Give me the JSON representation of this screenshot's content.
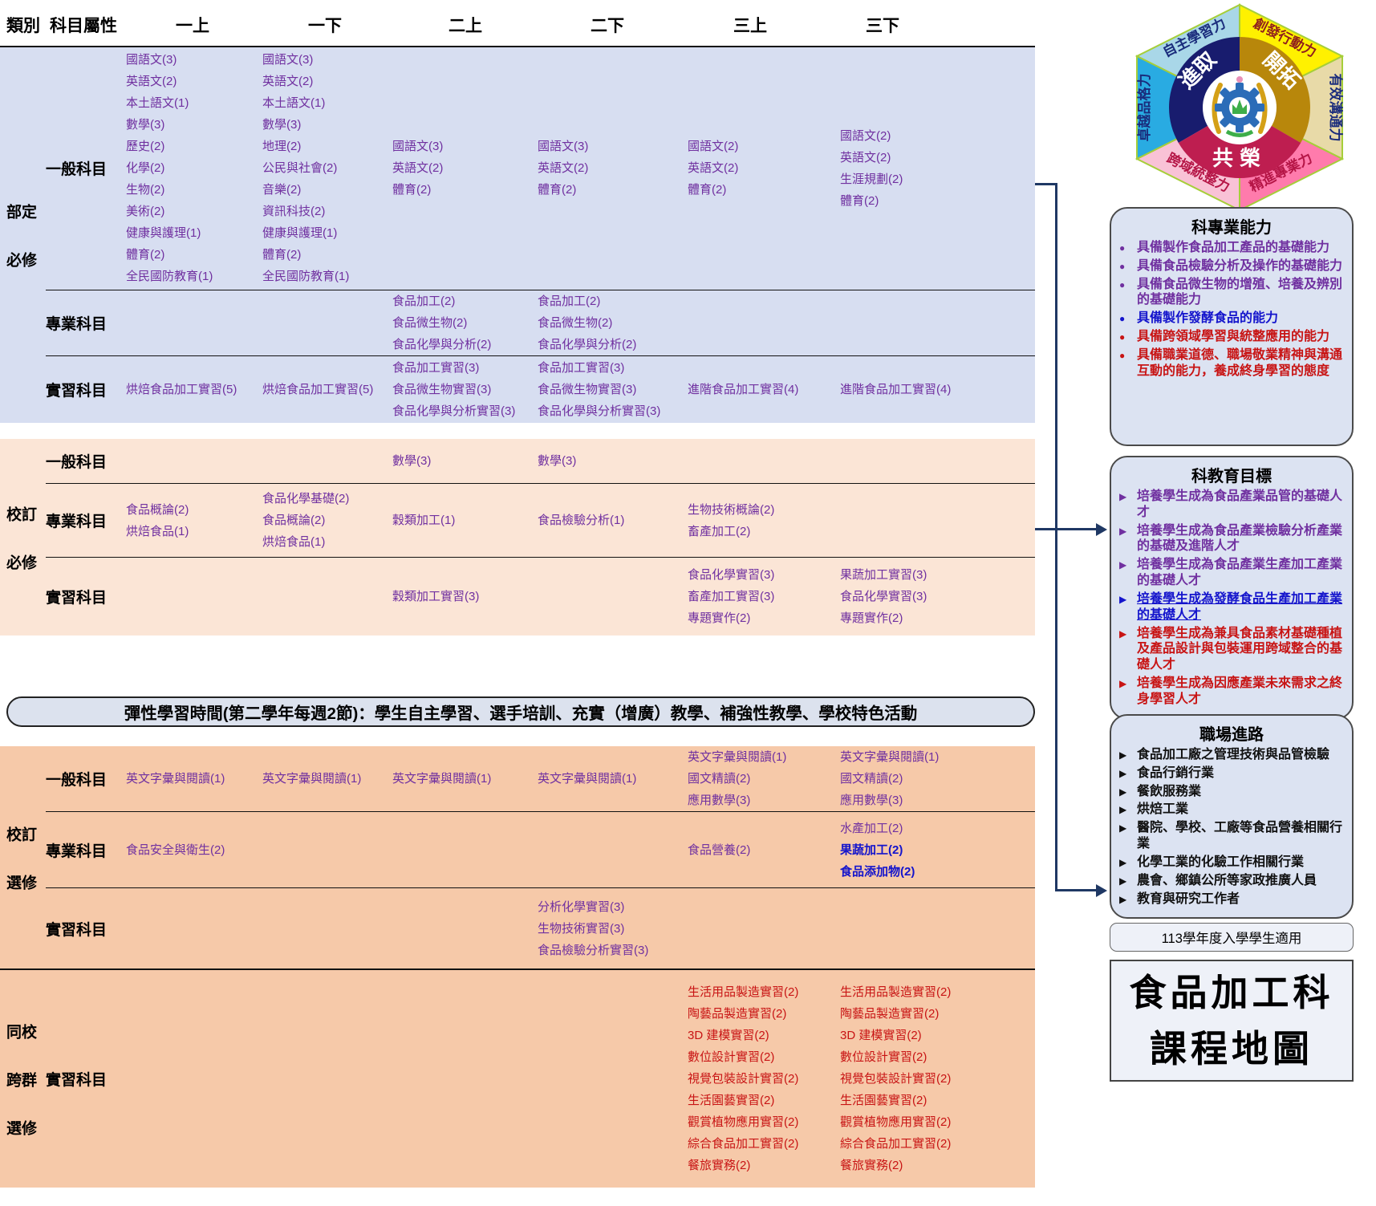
{
  "palette": {
    "purple": "#7030A0",
    "blue": "#1414CC",
    "red": "#C81414",
    "ink": "#111111",
    "navy": "#1F3864",
    "secblue": "#D7DEF1",
    "secpeach": "#FBE5D6",
    "secorange": "#F6C9A9",
    "bannerbg": "#DCE2EE",
    "boxbg": "#DCE3F2",
    "panelbg": "#EEF1F8"
  },
  "table": {
    "header": {
      "category_label": "類別",
      "attribute_label": "科目屬性",
      "semesters": [
        "一上",
        "一下",
        "二上",
        "二下",
        "三上",
        "三下"
      ]
    },
    "sections": [
      {
        "category": [
          "部定",
          "必修"
        ],
        "rows": [
          {
            "label": "一般科目",
            "cells": [
              [
                "國語文(3)",
                "英語文(2)",
                "本土語文(1)",
                "數學(3)",
                "歷史(2)",
                "化學(2)",
                "生物(2)",
                "美術(2)",
                "健康與護理(1)",
                "體育(2)",
                "全民國防教育(1)"
              ],
              [
                "國語文(3)",
                "英語文(2)",
                "本土語文(1)",
                "數學(3)",
                "地理(2)",
                "公民與社會(2)",
                "音樂(2)",
                "資訊科技(2)",
                "健康與護理(1)",
                "體育(2)",
                "全民國防教育(1)"
              ],
              [
                "國語文(3)",
                "英語文(2)",
                "體育(2)"
              ],
              [
                "國語文(3)",
                "英語文(2)",
                "體育(2)"
              ],
              [
                "國語文(2)",
                "英語文(2)",
                "體育(2)"
              ],
              [
                "國語文(2)",
                "英語文(2)",
                "生涯規劃(2)",
                "體育(2)"
              ]
            ]
          },
          {
            "label": "專業科目",
            "cells": [
              [],
              [],
              [
                "食品加工(2)",
                "食品微生物(2)",
                "食品化學與分析(2)"
              ],
              [
                "食品加工(2)",
                "食品微生物(2)",
                "食品化學與分析(2)"
              ],
              [],
              []
            ]
          },
          {
            "label": "實習科目",
            "cells": [
              [
                "烘焙食品加工實習(5)"
              ],
              [
                "烘焙食品加工實習(5)"
              ],
              [
                "食品加工實習(3)",
                "食品微生物實習(3)",
                "食品化學與分析實習(3)"
              ],
              [
                "食品加工實習(3)",
                "食品微生物實習(3)",
                "食品化學與分析實習(3)"
              ],
              [
                "進階食品加工實習(4)"
              ],
              [
                "進階食品加工實習(4)"
              ]
            ]
          }
        ]
      },
      {
        "category": [
          "校訂",
          "必修"
        ],
        "rows": [
          {
            "label": "一般科目",
            "cells": [
              [],
              [],
              [
                "數學(3)"
              ],
              [
                "數學(3)"
              ],
              [],
              []
            ]
          },
          {
            "label": "專業科目",
            "cells": [
              [
                "食品概論(2)",
                "烘焙食品(1)"
              ],
              [
                "食品化學基礎(2)",
                "食品概論(2)",
                "烘焙食品(1)"
              ],
              [
                "穀類加工(1)"
              ],
              [
                "食品檢驗分析(1)"
              ],
              [
                "生物技術概論(2)",
                "畜產加工(2)"
              ],
              []
            ]
          },
          {
            "label": "實習科目",
            "cells": [
              [],
              [],
              [
                "穀類加工實習(3)"
              ],
              [],
              [
                "食品化學實習(3)",
                "畜產加工實習(3)",
                "專題實作(2)"
              ],
              [
                "果蔬加工實習(3)",
                "食品化學實習(3)",
                "專題實作(2)"
              ]
            ]
          }
        ]
      },
      {
        "category": [
          "校訂",
          "選修"
        ],
        "rows": [
          {
            "label": "一般科目",
            "cells": [
              [
                "英文字彙與閱讀(1)"
              ],
              [
                "英文字彙與閱讀(1)"
              ],
              [
                "英文字彙與閱讀(1)"
              ],
              [
                "英文字彙與閱讀(1)"
              ],
              [
                "英文字彙與閱讀(1)",
                "國文精讀(2)",
                "應用數學(3)"
              ],
              [
                "英文字彙與閱讀(1)",
                "國文精讀(2)",
                "應用數學(3)"
              ]
            ]
          },
          {
            "label": "專業科目",
            "cells": [
              [
                "食品安全與衛生(2)"
              ],
              [],
              [],
              [],
              [
                "食品營養(2)"
              ],
              [
                "水產加工(2)",
                {
                  "t": "果蔬加工(2)",
                  "c": "blue"
                },
                {
                  "t": "食品添加物(2)",
                  "c": "blue"
                }
              ]
            ]
          },
          {
            "label": "實習科目",
            "cells": [
              [],
              [],
              [],
              [
                "分析化學實習(3)",
                "生物技術實習(3)",
                "食品檢驗分析實習(3)"
              ],
              [],
              []
            ]
          }
        ]
      },
      {
        "category": [
          "同校",
          "跨群",
          "選修"
        ],
        "rows": [
          {
            "label": "實習科目",
            "color": "red",
            "cells": [
              [],
              [],
              [],
              [],
              [
                "生活用品製造實習(2)",
                "陶藝品製造實習(2)",
                "3D 建模實習(2)",
                "數位設計實習(2)",
                "視覺包裝設計實習(2)",
                "生活園藝實習(2)",
                "觀賞植物應用實習(2)",
                "綜合食品加工實習(2)",
                "餐旅實務(2)"
              ],
              [
                "生活用品製造實習(2)",
                "陶藝品製造實習(2)",
                "3D 建模實習(2)",
                "數位設計實習(2)",
                "視覺包裝設計實習(2)",
                "生活園藝實習(2)",
                "觀賞植物應用實習(2)",
                "綜合食品加工實習(2)",
                "餐旅實務(2)"
              ]
            ]
          }
        ]
      }
    ]
  },
  "banner": "彈性學習時間(第二學年每週2節)：學生自主學習、選手培訓、充實（增廣）教學、補強性教學、學校特色活動",
  "logo": {
    "petals": [
      {
        "label": "自主學習力",
        "color": "#A9D7E8",
        "text": "#1A2C7C"
      },
      {
        "label": "創發行動力",
        "color": "#FFF100",
        "text": "#8F1D1D"
      },
      {
        "label": "有效溝通力",
        "color": "#E8DAA8",
        "text": "#1A2C7C"
      },
      {
        "label": "精進專業力",
        "color": "#FF7BAC",
        "text": "#B51546"
      },
      {
        "label": "跨域統整力",
        "color": "#F9C2D6",
        "text": "#B51546"
      },
      {
        "label": "卓越品格力",
        "color": "#29ABE2",
        "text": "#1A2C7C"
      }
    ],
    "core": [
      {
        "label": "進取",
        "color": "#181C6E"
      },
      {
        "label": "開拓",
        "color": "#B8870B"
      },
      {
        "label": "共榮",
        "color": "#BE1E50"
      }
    ]
  },
  "rail": {
    "boxes": [
      {
        "title": "科專業能力",
        "marker": "dot",
        "items": [
          {
            "t": "具備製作食品加工產品的基礎能力",
            "c": "purple"
          },
          {
            "t": "具備食品檢驗分析及操作的基礎能力",
            "c": "purple"
          },
          {
            "t": "具備食品微生物的增殖、培養及辨別的基礎能力",
            "c": "purple"
          },
          {
            "t": "具備製作發酵食品的能力",
            "c": "blue"
          },
          {
            "t": "具備跨領域學習與統整應用的能力",
            "c": "red"
          },
          {
            "t": "具備職業道德、職場敬業精神與溝通互動的能力，養成終身學習的態度",
            "c": "red"
          }
        ]
      },
      {
        "title": "科教育目標",
        "marker": "arrow",
        "items": [
          {
            "t": "培養學生成為食品產業品管的基礎人才",
            "c": "purple"
          },
          {
            "t": "培養學生成為食品產業檢驗分析產業的基礎及進階人才",
            "c": "purple"
          },
          {
            "t": "培養學生成為食品產業生產加工產業的基礎人才",
            "c": "purple"
          },
          {
            "t": "培養學生成為發酵食品生產加工產業的基礎人才",
            "c": "blue",
            "u": true
          },
          {
            "t": "培養學生成為兼具食品素材基礎種植及產品設計與包裝運用跨域整合的基礎人才",
            "c": "red"
          },
          {
            "t": "培養學生成為因應產業未來需求之終身學習人才",
            "c": "red"
          }
        ]
      },
      {
        "title": "職場進路",
        "marker": "arrow",
        "items": [
          {
            "t": "食品加工廠之管理技術與品管檢驗",
            "c": "black"
          },
          {
            "t": "食品行銷行業",
            "c": "black"
          },
          {
            "t": "餐飲服務業",
            "c": "black"
          },
          {
            "t": "烘焙工業",
            "c": "black"
          },
          {
            "t": "醫院、學校、工廠等食品營養相關行業",
            "c": "black"
          },
          {
            "t": "化學工業的化驗工作相關行業",
            "c": "black"
          },
          {
            "t": "農會、鄉鎮公所等家政推廣人員",
            "c": "black"
          },
          {
            "t": "教育與研究工作者",
            "c": "black"
          }
        ]
      }
    ],
    "note": "113學年度入學學生適用",
    "big_title_lines": [
      "食品加工科",
      "課程地圖"
    ]
  }
}
